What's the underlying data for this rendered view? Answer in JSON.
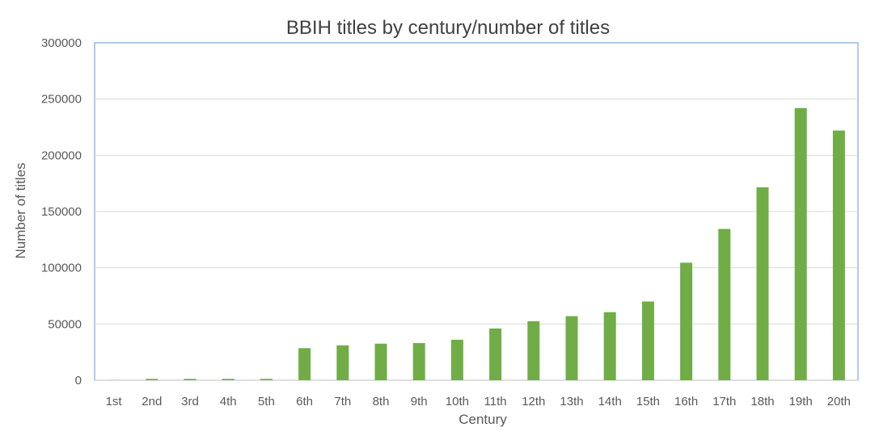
{
  "chart_data": {
    "type": "bar",
    "title": "BBIH titles by century/number of titles",
    "xlabel": "Century",
    "ylabel": "Number of titles",
    "ylim": [
      0,
      300000
    ],
    "yticks": [
      0,
      50000,
      100000,
      150000,
      200000,
      250000,
      300000
    ],
    "categories": [
      "1st",
      "2nd",
      "3rd",
      "4th",
      "5th",
      "6th",
      "7th",
      "8th",
      "9th",
      "10th",
      "11th",
      "12th",
      "13th",
      "14th",
      "15th",
      "16th",
      "17th",
      "18th",
      "19th",
      "20th"
    ],
    "series": [
      {
        "values": [
          100,
          1200,
          1200,
          1200,
          1200,
          28500,
          31000,
          32500,
          33000,
          36000,
          46000,
          52500,
          57000,
          60500,
          70000,
          104500,
          134500,
          171500,
          242000,
          222000
        ]
      }
    ],
    "grid": true,
    "legend": "none",
    "colors": {
      "bar": "#70ad47",
      "grid": "#d9d9d9",
      "axis": "#bfbfbf",
      "plot_border": "#5b9bd5"
    }
  }
}
